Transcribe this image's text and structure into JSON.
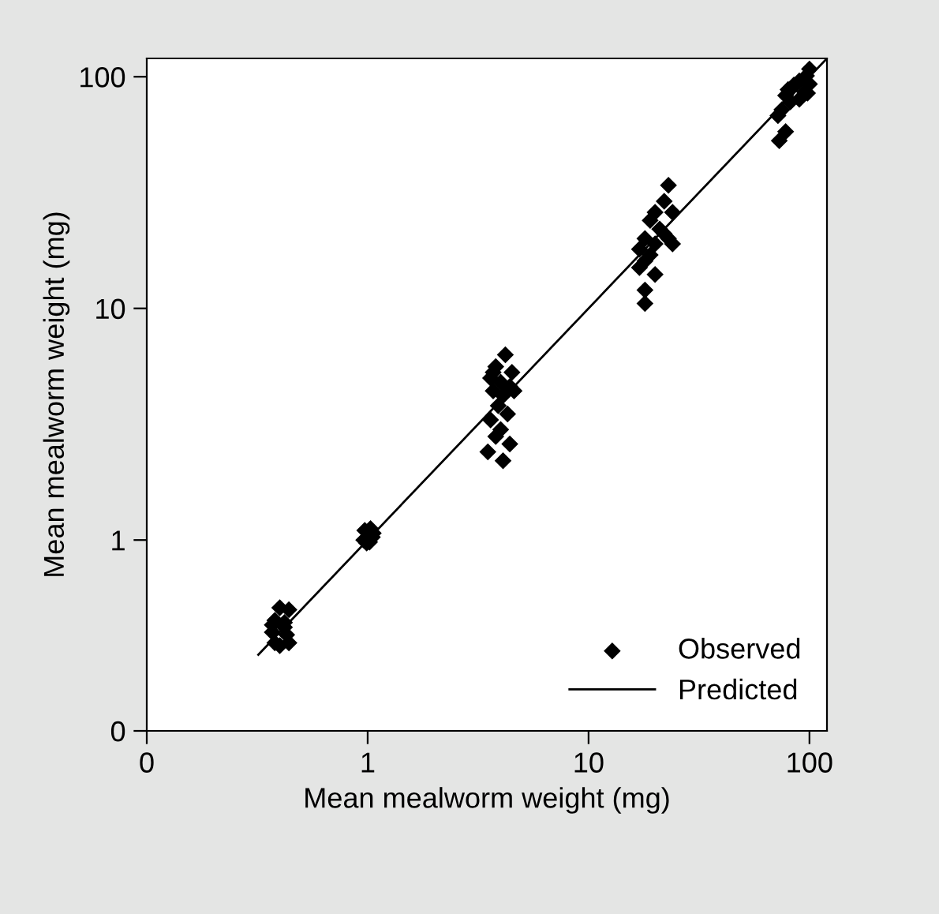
{
  "chart_data": {
    "type": "scatter",
    "xlabel": "Mean mealworm weight (mg)",
    "ylabel": "Mean mealworm weight (mg)",
    "log": "xy",
    "xlim": [
      0.1,
      120
    ],
    "ylim": [
      0.15,
      120
    ],
    "xticks": [
      {
        "value": 0.1,
        "label": "0"
      },
      1,
      10,
      100
    ],
    "yticks": [
      {
        "value": 0.15,
        "label": "0"
      },
      1,
      10,
      100
    ],
    "grid": false,
    "legend": "bottom right",
    "series": [
      {
        "name": "Observed",
        "marker": "diamond",
        "color": "#000000",
        "x": [
          0.4,
          0.44,
          0.38,
          0.42,
          0.37,
          0.43,
          0.38,
          0.44,
          0.4,
          0.42,
          0.37,
          0.97,
          1.03,
          1.05,
          0.96,
          1.02,
          0.99,
          1.06,
          4.2,
          3.8,
          4.5,
          3.6,
          4.0,
          4.4,
          3.7,
          4.1,
          3.9,
          4.3,
          3.6,
          4.0,
          3.8,
          4.4,
          3.5,
          4.1,
          3.7,
          4.6,
          23,
          22,
          20,
          24,
          19,
          21,
          18,
          23,
          20,
          17,
          19,
          18,
          17,
          20,
          18,
          18,
          22,
          24,
          100,
          97,
          90,
          100,
          85,
          80,
          95,
          78,
          82,
          75,
          72,
          90,
          78,
          73,
          98
        ],
        "values": [
          0.51,
          0.5,
          0.45,
          0.44,
          0.4,
          0.39,
          0.36,
          0.36,
          0.35,
          0.42,
          0.43,
          1.1,
          1.12,
          1.03,
          1.0,
          0.98,
          0.97,
          1.07,
          6.3,
          5.6,
          5.3,
          5.0,
          4.8,
          4.6,
          4.4,
          4.2,
          3.8,
          3.5,
          3.3,
          3.0,
          2.8,
          2.6,
          2.4,
          2.2,
          5.3,
          4.4,
          34,
          29,
          26,
          26,
          24,
          22,
          20,
          20,
          19,
          18,
          17,
          16,
          15,
          14,
          12,
          10.5,
          21,
          19,
          108,
          101,
          96,
          93,
          92,
          88,
          86,
          83,
          78,
          72,
          68,
          80,
          58,
          53,
          85
        ]
      },
      {
        "name": "Predicted",
        "type": "line",
        "marker": "none",
        "line_style": "solid",
        "color": "#000000",
        "x": [
          0.32,
          120
        ],
        "values": [
          0.32,
          120
        ]
      }
    ]
  }
}
